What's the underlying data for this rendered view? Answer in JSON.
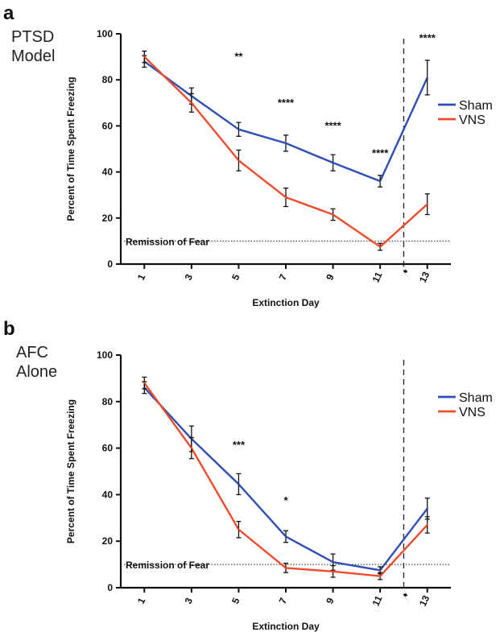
{
  "chart_data": [
    {
      "type": "line",
      "panel_letter": "a",
      "model_label": [
        "PTSD",
        "Model"
      ],
      "xlabel": "Extinction Day",
      "ylabel": "Percent of Time Spent Freezing",
      "x": [
        1,
        3,
        5,
        7,
        9,
        11,
        13
      ],
      "ylim": [
        0,
        100
      ],
      "yticks": [
        0,
        20,
        40,
        60,
        80,
        100
      ],
      "series": [
        {
          "name": "Sham",
          "color": "#2f4fb3",
          "values": [
            88,
            73,
            58.5,
            52.5,
            44,
            36,
            81
          ],
          "errors": [
            2.5,
            3.5,
            3,
            3.5,
            3.5,
            2.5,
            7.5
          ]
        },
        {
          "name": "VNS",
          "color": "#ee4c2c",
          "values": [
            90,
            70,
            45,
            29,
            21.5,
            7.5,
            26
          ],
          "errors": [
            2.5,
            4,
            4.5,
            4,
            2.5,
            1.5,
            4.5
          ]
        }
      ],
      "significance": [
        {
          "x": 5,
          "label": "**"
        },
        {
          "x": 7,
          "label": "****"
        },
        {
          "x": 9,
          "label": "****"
        },
        {
          "x": 11,
          "label": "****"
        },
        {
          "x": 13,
          "label": "****"
        }
      ],
      "remission": {
        "label": "Remission of Fear",
        "y": 10
      },
      "divider_x": 12,
      "legend_position": "right"
    },
    {
      "type": "line",
      "panel_letter": "b",
      "model_label": [
        "AFC",
        "Alone"
      ],
      "xlabel": "Extinction Day",
      "ylabel": "Percent of Time Spent Freezing",
      "x": [
        1,
        3,
        5,
        7,
        9,
        11,
        13
      ],
      "ylim": [
        0,
        100
      ],
      "yticks": [
        0,
        20,
        40,
        60,
        80,
        100
      ],
      "series": [
        {
          "name": "Sham",
          "color": "#2f4fb3",
          "values": [
            86,
            64,
            44.5,
            22,
            11,
            7.5,
            34
          ],
          "errors": [
            2.5,
            5.5,
            4.5,
            2.5,
            3.5,
            1.5,
            4.5
          ]
        },
        {
          "name": "VNS",
          "color": "#ee4c2c",
          "values": [
            88,
            60,
            25,
            8.5,
            7,
            5,
            27
          ],
          "errors": [
            2.5,
            4.5,
            3.5,
            2,
            2.5,
            1.5,
            3.5
          ]
        }
      ],
      "significance": [
        {
          "x": 5,
          "label": "***"
        },
        {
          "x": 7,
          "label": "*"
        }
      ],
      "remission": {
        "label": "Remission of Fear",
        "y": 10
      },
      "divider_x": 12,
      "legend_position": "right"
    }
  ]
}
